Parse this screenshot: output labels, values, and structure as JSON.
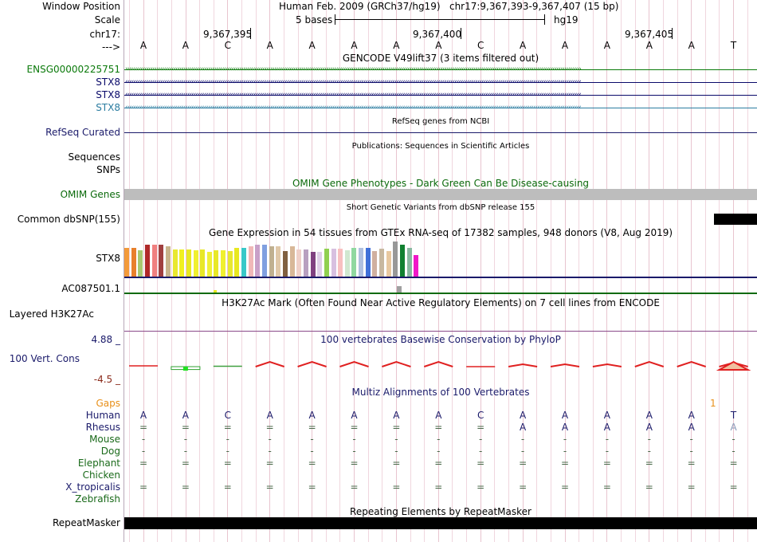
{
  "header": {
    "window_position_label": "Window Position",
    "assembly": "Human Feb. 2009 (GRCh37/hg19)",
    "position": "chr17:9,367,393-9,367,407 (15 bp)",
    "scale_label": "Scale",
    "scale_value": "5 bases",
    "scale_db": "hg19",
    "chrom_label": "chr17:",
    "coords": [
      "9,367,395",
      "9,367,400",
      "9,367,405"
    ],
    "strand_label": "--->",
    "bases": [
      "A",
      "A",
      "C",
      "A",
      "A",
      "A",
      "A",
      "A",
      "C",
      "A",
      "A",
      "A",
      "A",
      "A",
      "T"
    ]
  },
  "tracks": {
    "gencode": {
      "title": "GENCODE V49lift37 (3 items filtered out)",
      "items": [
        {
          "name": "ENSG00000225751",
          "color": "#0b7a0b",
          "arrow": "›"
        },
        {
          "name": "STX8",
          "color": "#0a0a6a",
          "arrow": "‹"
        },
        {
          "name": "STX8",
          "color": "#0a0a6a",
          "arrow": "‹"
        },
        {
          "name": "STX8",
          "color": "#2a7ca0",
          "arrow": "‹"
        }
      ]
    },
    "refseq": {
      "title": "RefSeq genes from NCBI",
      "label": "RefSeq Curated"
    },
    "publications": {
      "title": "Publications: Sequences in Scientific Articles",
      "label_seq": "Sequences",
      "label_snp": "SNPs"
    },
    "omim": {
      "title": "OMIM Gene Phenotypes - Dark Green Can Be Disease-causing",
      "label": "OMIM Genes"
    },
    "dbsnp": {
      "title": "Short Genetic Variants from dbSNP release 155",
      "label": "Common dbSNP(155)"
    },
    "gtex": {
      "title": "Gene Expression in 54 tissues from GTEx RNA-seq of 17382 samples, 948 donors (V8, Aug 2019)",
      "label": "STX8",
      "bars": [
        {
          "v": 0.82,
          "c": "#f39a3a"
        },
        {
          "v": 0.82,
          "c": "#e8802c"
        },
        {
          "v": 0.74,
          "c": "#a8c870"
        },
        {
          "v": 0.92,
          "c": "#b02828"
        },
        {
          "v": 0.9,
          "c": "#f08080"
        },
        {
          "v": 0.92,
          "c": "#a04040"
        },
        {
          "v": 0.86,
          "c": "#c8b48c"
        },
        {
          "v": 0.78,
          "c": "#e8e830"
        },
        {
          "v": 0.78,
          "c": "#f0f020"
        },
        {
          "v": 0.78,
          "c": "#e8e820"
        },
        {
          "v": 0.74,
          "c": "#f0f030"
        },
        {
          "v": 0.78,
          "c": "#e8e828"
        },
        {
          "v": 0.7,
          "c": "#f0f038"
        },
        {
          "v": 0.74,
          "c": "#e8e828"
        },
        {
          "v": 0.74,
          "c": "#f0f030"
        },
        {
          "v": 0.72,
          "c": "#e8e830"
        },
        {
          "v": 0.82,
          "c": "#e8e820"
        },
        {
          "v": 0.82,
          "c": "#38c8c8"
        },
        {
          "v": 0.86,
          "c": "#f0b8b8"
        },
        {
          "v": 0.9,
          "c": "#c8a0c8"
        },
        {
          "v": 0.9,
          "c": "#80a0e0"
        },
        {
          "v": 0.86,
          "c": "#c0b090"
        },
        {
          "v": 0.86,
          "c": "#e0c8a8"
        },
        {
          "v": 0.72,
          "c": "#806040"
        },
        {
          "v": 0.86,
          "c": "#d8b898"
        },
        {
          "v": 0.78,
          "c": "#f0d0c8"
        },
        {
          "v": 0.78,
          "c": "#b8a0c0"
        },
        {
          "v": 0.7,
          "c": "#804080"
        },
        {
          "v": 0.7,
          "c": "#e0d0e8"
        },
        {
          "v": 0.8,
          "c": "#90d050"
        },
        {
          "v": 0.8,
          "c": "#d8c0e0"
        },
        {
          "v": 0.8,
          "c": "#f8c0c0"
        },
        {
          "v": 0.74,
          "c": "#d0e8d0"
        },
        {
          "v": 0.82,
          "c": "#90d8a0"
        },
        {
          "v": 0.82,
          "c": "#b0c0e0"
        },
        {
          "v": 0.82,
          "c": "#4070d8"
        },
        {
          "v": 0.72,
          "c": "#d0b0a0"
        },
        {
          "v": 0.8,
          "c": "#c8b8a0"
        },
        {
          "v": 0.72,
          "c": "#e8c8a0"
        },
        {
          "v": 1.0,
          "c": "#989898"
        },
        {
          "v": 0.9,
          "c": "#108030"
        },
        {
          "v": 0.82,
          "c": "#88b8a0"
        },
        {
          "v": 0.62,
          "c": "#f018c8"
        }
      ]
    },
    "ac087501": {
      "label": "AC087501.1"
    },
    "h3k27ac": {
      "title": "H3K27Ac Mark (Often Found Near Active Regulatory Elements) on 7 cell lines from ENCODE",
      "label": "Layered H3K27Ac"
    },
    "phylop": {
      "title": "100 vertebrates Basewise Conservation by PhyloP",
      "label": "100 Vert. Cons",
      "max": "4.88 _",
      "min": "-4.5 _",
      "values": [
        0.1,
        -0.3,
        0.05,
        0.6,
        0.6,
        0.6,
        0.6,
        0.6,
        0.0,
        0.3,
        0.3,
        0.3,
        0.6,
        0.6,
        0.5
      ]
    },
    "multiz": {
      "title": "Multiz Alignments of 100 Vertebrates",
      "gaps_label": "Gaps",
      "gaps_marker": "1",
      "species": [
        {
          "name": "Human",
          "color": "#1a1a6a",
          "row": [
            "A",
            "A",
            "C",
            "A",
            "A",
            "A",
            "A",
            "A",
            "C",
            "A",
            "A",
            "A",
            "A",
            "A",
            "T"
          ]
        },
        {
          "name": "Rhesus",
          "color": "#1a1a6a",
          "row": [
            "=",
            "=",
            "=",
            "=",
            "=",
            "=",
            "=",
            "=",
            "=",
            "A",
            "A",
            "A",
            "A",
            "A",
            "A"
          ]
        },
        {
          "name": "Mouse",
          "color": "#1a6a1a",
          "row": [
            "-",
            "-",
            "-",
            "-",
            "-",
            "-",
            "-",
            "-",
            "-",
            "-",
            "-",
            "-",
            "-",
            "-",
            "-"
          ]
        },
        {
          "name": "Dog",
          "color": "#1a6a1a",
          "row": [
            "-",
            "-",
            "-",
            "-",
            "-",
            "-",
            "-",
            "-",
            "-",
            "-",
            "-",
            "-",
            "-",
            "-",
            "-"
          ]
        },
        {
          "name": "Elephant",
          "color": "#1a6a1a",
          "row": [
            "=",
            "=",
            "=",
            "=",
            "=",
            "=",
            "=",
            "=",
            "=",
            "=",
            "=",
            "=",
            "=",
            "=",
            "="
          ]
        },
        {
          "name": "Chicken",
          "color": "#1a6a1a",
          "row": [
            "",
            "",
            "",
            "",
            "",
            "",
            "",
            "",
            "",
            "",
            "",
            "",
            "",
            "",
            ""
          ]
        },
        {
          "name": "X_tropicalis",
          "color": "#1a1a6a",
          "row": [
            "=",
            "=",
            "=",
            "=",
            "=",
            "=",
            "=",
            "=",
            "=",
            "=",
            "=",
            "=",
            "=",
            "=",
            "="
          ]
        },
        {
          "name": "Zebrafish",
          "color": "#1a6a1a",
          "row": [
            "",
            "",
            "",
            "",
            "",
            "",
            "",
            "",
            "",
            "",
            "",
            "",
            "",
            "",
            ""
          ]
        }
      ]
    },
    "repeatmasker": {
      "title": "Repeating Elements by RepeatMasker",
      "label": "RepeatMasker"
    }
  },
  "colors": {
    "navy": "#1a1a6a",
    "green": "#0b6a0b",
    "omim_gray": "#bdbdbd",
    "phylop_red": "#e02020",
    "gaps_orange": "#e8901a"
  }
}
